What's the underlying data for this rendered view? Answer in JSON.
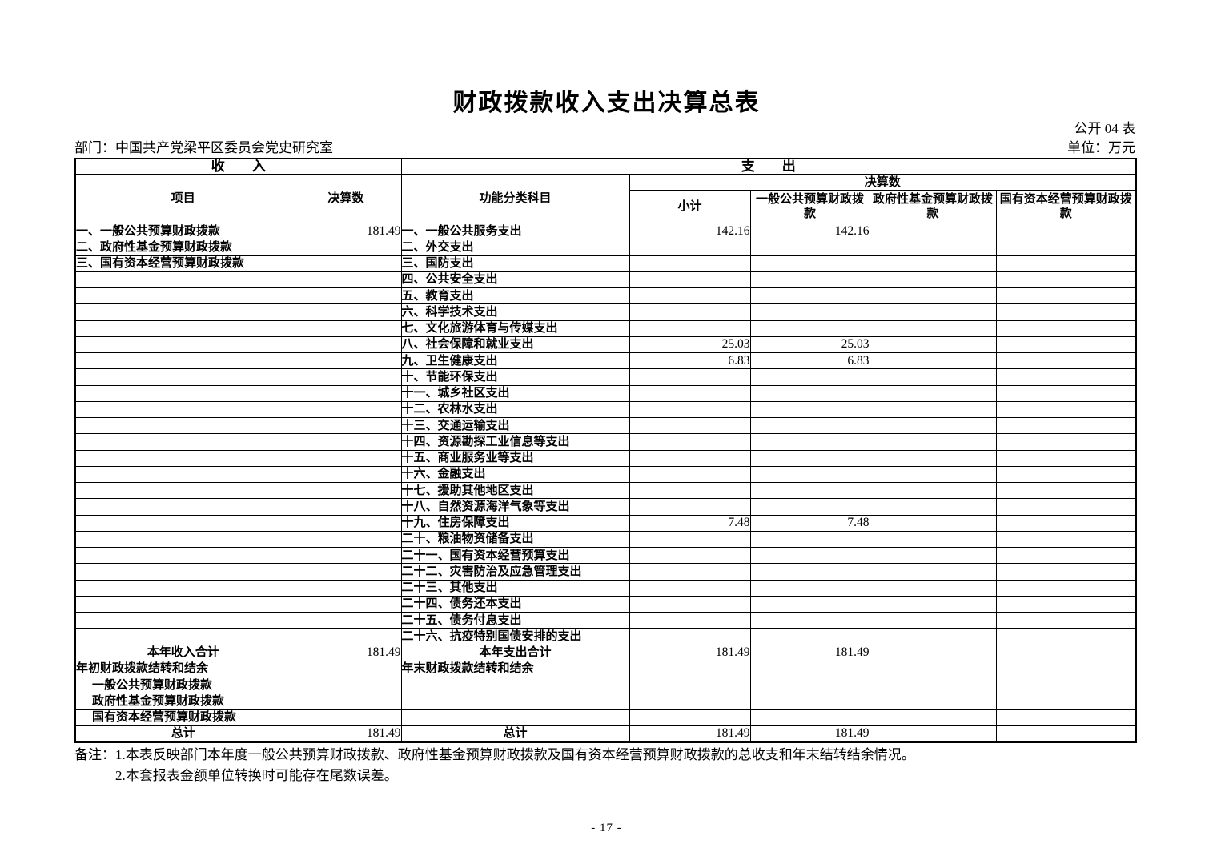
{
  "page": {
    "title": "财政拨款收入支出决算总表",
    "table_code": "公开 04 表",
    "department": "部门：中国共产党梁平区委员会党史研究室",
    "unit": "单位：万元",
    "page_number": "- 17 -"
  },
  "table": {
    "income_header": "收　　入",
    "expense_header": "支　　出",
    "col_item": "项目",
    "col_income_final": "决算数",
    "col_function": "功能分类科目",
    "col_expense_final_group": "决算数",
    "col_subtotal": "小计",
    "col_general": "一般公共预算财政拨款",
    "col_fund": "政府性基金预算财政拨款",
    "col_capital": "国有资本经营预算财政拨款",
    "rows": [
      {
        "income": "一、一般公共预算财政拨款",
        "income_value": "181.49",
        "expense": "一、一般公共服务支出",
        "subtotal": "142.16",
        "general": "142.16",
        "fund": "",
        "capital": ""
      },
      {
        "income": "二、政府性基金预算财政拨款",
        "income_value": "",
        "expense": "二、外交支出",
        "subtotal": "",
        "general": "",
        "fund": "",
        "capital": ""
      },
      {
        "income": "三、国有资本经营预算财政拨款",
        "income_value": "",
        "expense": "三、国防支出",
        "subtotal": "",
        "general": "",
        "fund": "",
        "capital": ""
      },
      {
        "income": "",
        "income_value": "",
        "expense": "四、公共安全支出",
        "subtotal": "",
        "general": "",
        "fund": "",
        "capital": ""
      },
      {
        "income": "",
        "income_value": "",
        "expense": "五、教育支出",
        "subtotal": "",
        "general": "",
        "fund": "",
        "capital": ""
      },
      {
        "income": "",
        "income_value": "",
        "expense": "六、科学技术支出",
        "subtotal": "",
        "general": "",
        "fund": "",
        "capital": ""
      },
      {
        "income": "",
        "income_value": "",
        "expense": "七、文化旅游体育与传媒支出",
        "subtotal": "",
        "general": "",
        "fund": "",
        "capital": ""
      },
      {
        "income": "",
        "income_value": "",
        "expense": "八、社会保障和就业支出",
        "subtotal": "25.03",
        "general": "25.03",
        "fund": "",
        "capital": ""
      },
      {
        "income": "",
        "income_value": "",
        "expense": "九、卫生健康支出",
        "subtotal": "6.83",
        "general": "6.83",
        "fund": "",
        "capital": ""
      },
      {
        "income": "",
        "income_value": "",
        "expense": "十、节能环保支出",
        "subtotal": "",
        "general": "",
        "fund": "",
        "capital": ""
      },
      {
        "income": "",
        "income_value": "",
        "expense": "十一、城乡社区支出",
        "subtotal": "",
        "general": "",
        "fund": "",
        "capital": ""
      },
      {
        "income": "",
        "income_value": "",
        "expense": "十二、农林水支出",
        "subtotal": "",
        "general": "",
        "fund": "",
        "capital": ""
      },
      {
        "income": "",
        "income_value": "",
        "expense": "十三、交通运输支出",
        "subtotal": "",
        "general": "",
        "fund": "",
        "capital": ""
      },
      {
        "income": "",
        "income_value": "",
        "expense": "十四、资源勘探工业信息等支出",
        "subtotal": "",
        "general": "",
        "fund": "",
        "capital": ""
      },
      {
        "income": "",
        "income_value": "",
        "expense": "十五、商业服务业等支出",
        "subtotal": "",
        "general": "",
        "fund": "",
        "capital": ""
      },
      {
        "income": "",
        "income_value": "",
        "expense": "十六、金融支出",
        "subtotal": "",
        "general": "",
        "fund": "",
        "capital": ""
      },
      {
        "income": "",
        "income_value": "",
        "expense": "十七、援助其他地区支出",
        "subtotal": "",
        "general": "",
        "fund": "",
        "capital": ""
      },
      {
        "income": "",
        "income_value": "",
        "expense": "十八、自然资源海洋气象等支出",
        "subtotal": "",
        "general": "",
        "fund": "",
        "capital": ""
      },
      {
        "income": "",
        "income_value": "",
        "expense": "十九、住房保障支出",
        "subtotal": "7.48",
        "general": "7.48",
        "fund": "",
        "capital": ""
      },
      {
        "income": "",
        "income_value": "",
        "expense": "二十、粮油物资储备支出",
        "subtotal": "",
        "general": "",
        "fund": "",
        "capital": ""
      },
      {
        "income": "",
        "income_value": "",
        "expense": "二十一、国有资本经营预算支出",
        "subtotal": "",
        "general": "",
        "fund": "",
        "capital": ""
      },
      {
        "income": "",
        "income_value": "",
        "expense": "二十二、灾害防治及应急管理支出",
        "subtotal": "",
        "general": "",
        "fund": "",
        "capital": ""
      },
      {
        "income": "",
        "income_value": "",
        "expense": "二十三、其他支出",
        "subtotal": "",
        "general": "",
        "fund": "",
        "capital": ""
      },
      {
        "income": "",
        "income_value": "",
        "expense": "二十四、债务还本支出",
        "subtotal": "",
        "general": "",
        "fund": "",
        "capital": ""
      },
      {
        "income": "",
        "income_value": "",
        "expense": "二十五、债务付息支出",
        "subtotal": "",
        "general": "",
        "fund": "",
        "capital": ""
      },
      {
        "income": "",
        "income_value": "",
        "expense": "二十六、抗疫特别国债安排的支出",
        "subtotal": "",
        "general": "",
        "fund": "",
        "capital": ""
      },
      {
        "income": "本年收入合计",
        "income_align": "c",
        "income_value": "181.49",
        "expense": "本年支出合计",
        "expense_align": "c",
        "subtotal": "181.49",
        "general": "181.49",
        "fund": "",
        "capital": ""
      },
      {
        "income": "年初财政拨款结转和结余",
        "income_value": "",
        "expense": "年末财政拨款结转和结余",
        "subtotal": "",
        "general": "",
        "fund": "",
        "capital": ""
      },
      {
        "income": "一般公共预算财政拨款",
        "income_align": "i",
        "income_value": "",
        "expense": "",
        "subtotal": "",
        "general": "",
        "fund": "",
        "capital": ""
      },
      {
        "income": "政府性基金预算财政拨款",
        "income_align": "i",
        "income_value": "",
        "expense": "",
        "subtotal": "",
        "general": "",
        "fund": "",
        "capital": ""
      },
      {
        "income": "国有资本经营预算财政拨款",
        "income_align": "i",
        "income_value": "",
        "expense": "",
        "subtotal": "",
        "general": "",
        "fund": "",
        "capital": ""
      },
      {
        "income": "总计",
        "income_align": "c",
        "income_value": "181.49",
        "expense": "总计",
        "expense_align": "c",
        "subtotal": "181.49",
        "general": "181.49",
        "fund": "",
        "capital": ""
      }
    ]
  },
  "notes": {
    "label": "备注：",
    "line1": "1.本表反映部门本年度一般公共预算财政拨款、政府性基金预算财政拨款及国有资本经营预算财政拨款的总收支和年末结转结余情况。",
    "line2": "2.本套报表金额单位转换时可能存在尾数误差。"
  }
}
